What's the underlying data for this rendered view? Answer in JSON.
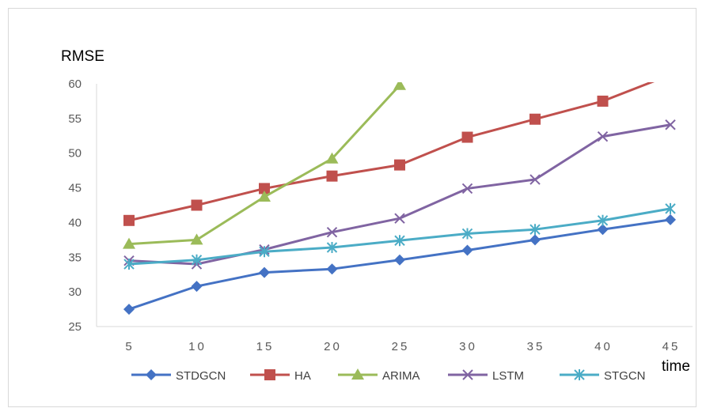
{
  "chart_data": {
    "type": "line",
    "title": "",
    "ylabel": "RMSE",
    "xlabel": "time",
    "categories": [
      "5",
      "10",
      "15",
      "20",
      "25",
      "30",
      "35",
      "40",
      "45"
    ],
    "y_ticks": [
      "25",
      "30",
      "35",
      "40",
      "45",
      "50",
      "55",
      "60"
    ],
    "ylim": [
      25,
      60
    ],
    "grid": false,
    "legend_position": "bottom",
    "series": [
      {
        "name": "STDGCN",
        "color": "#4472c4",
        "marker": "diamond",
        "values": [
          27.5,
          30.8,
          32.8,
          33.3,
          34.6,
          36.0,
          37.5,
          39.0,
          40.4
        ]
      },
      {
        "name": "HA",
        "color": "#c0504d",
        "marker": "square",
        "values": [
          40.3,
          42.5,
          44.9,
          46.7,
          48.3,
          52.3,
          54.9,
          57.5,
          61.3
        ]
      },
      {
        "name": "ARIMA",
        "color": "#9bbb59",
        "marker": "triangle",
        "values": [
          36.9,
          37.5,
          43.7,
          49.2,
          59.8,
          null,
          null,
          null,
          null
        ]
      },
      {
        "name": "LSTM",
        "color": "#8064a2",
        "marker": "x",
        "values": [
          34.5,
          34.0,
          36.1,
          38.6,
          40.6,
          44.9,
          46.2,
          52.4,
          54.1
        ]
      },
      {
        "name": "STGCN",
        "color": "#4bacc6",
        "marker": "star",
        "values": [
          34.0,
          34.6,
          35.8,
          36.4,
          37.4,
          38.4,
          39.0,
          40.3,
          42.0
        ]
      }
    ]
  }
}
